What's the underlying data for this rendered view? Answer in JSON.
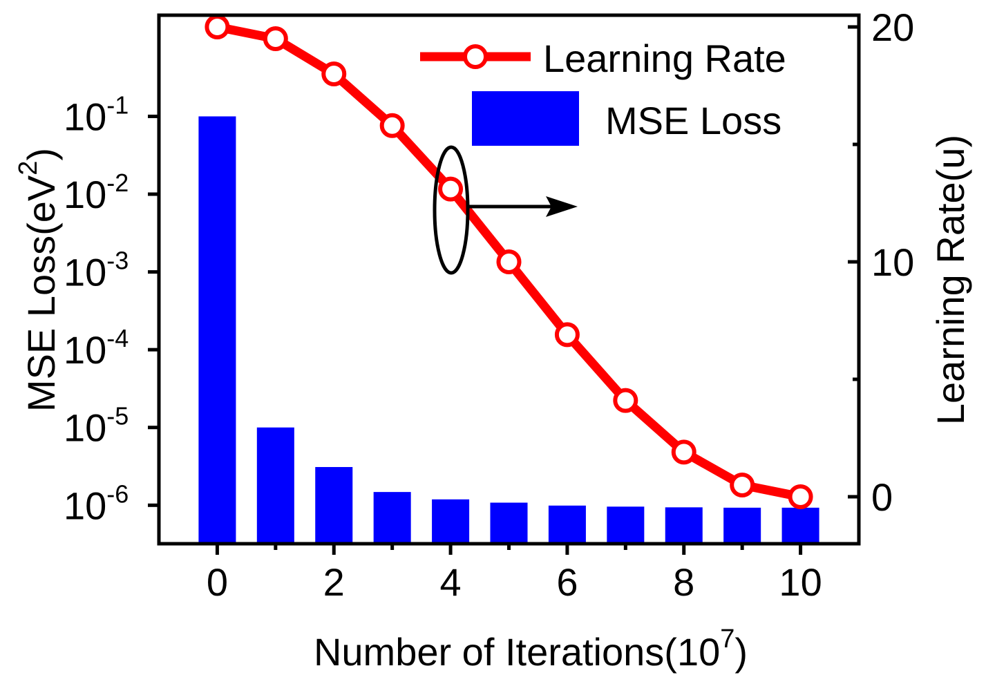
{
  "chart_data": {
    "type": "bar+line",
    "x_axis": {
      "label": "Number of Iterations(10",
      "label_exponent": "7",
      "label_suffix": ")",
      "ticks": [
        0,
        2,
        4,
        6,
        8,
        10
      ],
      "tick_labels": [
        "0",
        "2",
        "4",
        "6",
        "8",
        "10"
      ],
      "range": [
        -1,
        11
      ]
    },
    "y_left": {
      "label": "MSE Loss(eV",
      "label_exponent": "2",
      "label_suffix": ")",
      "scale": "log",
      "range": [
        3.2e-07,
        2.0
      ],
      "ticks": [
        1e-06,
        1e-05,
        0.0001,
        0.001,
        0.01,
        0.1
      ],
      "tick_bases": [
        "10",
        "10",
        "10",
        "10",
        "10",
        "10"
      ],
      "tick_exponents": [
        "-6",
        "-5",
        "-4",
        "-3",
        "-2",
        "-1"
      ]
    },
    "y_right": {
      "label": "Learning Rate(u)",
      "scale": "linear",
      "range": [
        -2,
        20.5
      ],
      "ticks": [
        0,
        10,
        20
      ],
      "tick_labels": [
        "0",
        "10",
        "20"
      ],
      "minor_ticks": [
        5,
        15
      ]
    },
    "series": [
      {
        "name": "MSE Loss",
        "type": "bar",
        "axis": "left",
        "color": "#0000ff",
        "x": [
          0,
          1,
          2,
          3,
          4,
          5,
          6,
          7,
          8,
          9,
          10
        ],
        "values": [
          0.1,
          1e-05,
          3.1e-06,
          1.48e-06,
          1.19e-06,
          1.08e-06,
          9.9e-07,
          9.6e-07,
          9.4e-07,
          9.3e-07,
          9.3e-07
        ]
      },
      {
        "name": "Learning Rate",
        "type": "line",
        "axis": "right",
        "color": "#ff0000",
        "marker": "open-circle",
        "x": [
          0,
          1,
          2,
          3,
          4,
          5,
          6,
          7,
          8,
          9,
          10
        ],
        "values": [
          20,
          19.5,
          18.0,
          15.8,
          13.1,
          10.0,
          6.9,
          4.1,
          1.9,
          0.5,
          0
        ]
      }
    ],
    "legend": {
      "placement": "top-right",
      "entries": [
        "Learning Rate",
        "MSE Loss"
      ]
    },
    "annotation": "ellipse around the point at x=4 with arrow pointing to the right axis"
  }
}
